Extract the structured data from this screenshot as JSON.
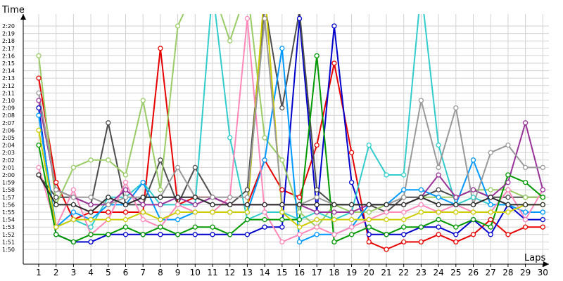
{
  "chart_data": {
    "type": "line",
    "xlabel": "Laps",
    "ylabel": "Time",
    "y_ticks": [
      "1:50",
      "1:51",
      "1:52",
      "1:53",
      "1:54",
      "1:55",
      "1:56",
      "1:57",
      "1:58",
      "1:59",
      "2:00",
      "2:01",
      "2:02",
      "2:03",
      "2:04",
      "2:05",
      "2:06",
      "2:07",
      "2:08",
      "2:09",
      "2:10",
      "2:11",
      "2:12",
      "2:13",
      "2:14",
      "2:15",
      "2:16",
      "2:17",
      "2:18",
      "2:19",
      "2:20"
    ],
    "x": [
      1,
      2,
      3,
      4,
      5,
      6,
      7,
      8,
      9,
      10,
      11,
      12,
      13,
      14,
      15,
      16,
      17,
      18,
      19,
      20,
      21,
      22,
      23,
      24,
      25,
      26,
      27,
      28,
      29,
      30
    ],
    "ylim": [
      110,
      141
    ],
    "grid": true,
    "series": [
      {
        "color": "#e60000",
        "values": [
          133,
          119,
          114,
          115,
          115,
          115,
          115,
          137,
          116,
          117,
          117,
          116,
          116,
          122,
          118,
          117,
          124,
          135,
          123,
          111,
          110,
          111,
          111,
          112,
          111,
          112,
          114,
          112,
          113,
          113
        ]
      },
      {
        "color": "#0000cc",
        "values": [
          129,
          112,
          111,
          111,
          112,
          112,
          112,
          112,
          112,
          112,
          112,
          112,
          112,
          113,
          113,
          141,
          115,
          140,
          119,
          112,
          112,
          112,
          113,
          113,
          112,
          114,
          112,
          116,
          114,
          114
        ]
      },
      {
        "color": "#4d4d4d",
        "values": [
          120,
          117,
          117,
          116,
          127,
          116,
          116,
          122,
          116,
          121,
          117,
          116,
          118,
          143,
          129,
          142,
          118,
          116,
          116,
          116,
          115,
          117,
          117,
          118,
          117,
          118,
          117,
          117,
          117,
          117
        ]
      },
      {
        "color": "#99cc66",
        "values": [
          136,
          116,
          121,
          122,
          122,
          120,
          130,
          118,
          140,
          145,
          145,
          138,
          145,
          125,
          122,
          115,
          113,
          116,
          115,
          115,
          116,
          116,
          117,
          117,
          117,
          118,
          118,
          118,
          117,
          117
        ]
      },
      {
        "color": "#33cccc",
        "values": [
          128,
          113,
          114,
          113,
          117,
          117,
          119,
          116,
          116,
          116,
          145,
          125,
          114,
          115,
          115,
          114,
          115,
          114,
          115,
          124,
          120,
          120,
          145,
          124,
          116,
          117,
          116,
          116,
          115,
          115
        ]
      },
      {
        "color": "#0099ff",
        "values": [
          128,
          113,
          115,
          114,
          116,
          116,
          119,
          114,
          114,
          115,
          115,
          115,
          115,
          122,
          137,
          111,
          112,
          112,
          113,
          116,
          116,
          118,
          118,
          117,
          116,
          122,
          116,
          116,
          115,
          115
        ]
      },
      {
        "color": "#ff88bb",
        "values": [
          121,
          113,
          118,
          112,
          114,
          119,
          114,
          113,
          116,
          115,
          115,
          117,
          141,
          115,
          111,
          112,
          113,
          112,
          113,
          114,
          115,
          115,
          116,
          115,
          116,
          115,
          115,
          118,
          114,
          118
        ]
      },
      {
        "color": "#009900",
        "values": [
          124,
          112,
          111,
          112,
          112,
          113,
          112,
          113,
          112,
          113,
          113,
          112,
          114,
          114,
          114,
          114,
          136,
          111,
          112,
          113,
          112,
          113,
          113,
          114,
          113,
          114,
          113,
          120,
          119,
          117
        ]
      },
      {
        "color": "#cccc00",
        "values": [
          126,
          113,
          114,
          114,
          114,
          114,
          115,
          114,
          115,
          115,
          115,
          115,
          115,
          145,
          115,
          113,
          114,
          114,
          114,
          114,
          114,
          114,
          115,
          115,
          115,
          115,
          115,
          115,
          116,
          116
        ]
      },
      {
        "color": "#993399",
        "values": [
          130,
          118,
          117,
          116,
          116,
          118,
          116,
          116,
          117,
          116,
          117,
          116,
          116,
          116,
          116,
          116,
          115,
          115,
          115,
          116,
          116,
          116,
          117,
          120,
          117,
          118,
          117,
          119,
          127,
          118
        ]
      },
      {
        "color": "#999999",
        "values": [
          131,
          118,
          117,
          117,
          116,
          117,
          117,
          117,
          121,
          117,
          117,
          117,
          117,
          141,
          116,
          116,
          117,
          116,
          116,
          116,
          116,
          117,
          130,
          121,
          129,
          116,
          123,
          124,
          121,
          121
        ]
      },
      {
        "color": "#2b2b2b",
        "values": [
          120,
          116,
          116,
          115,
          117,
          116,
          117,
          117,
          117,
          117,
          116,
          116,
          116,
          116,
          116,
          116,
          116,
          116,
          116,
          116,
          116,
          116,
          117,
          116,
          116,
          116,
          117,
          116,
          116,
          116
        ]
      }
    ]
  }
}
